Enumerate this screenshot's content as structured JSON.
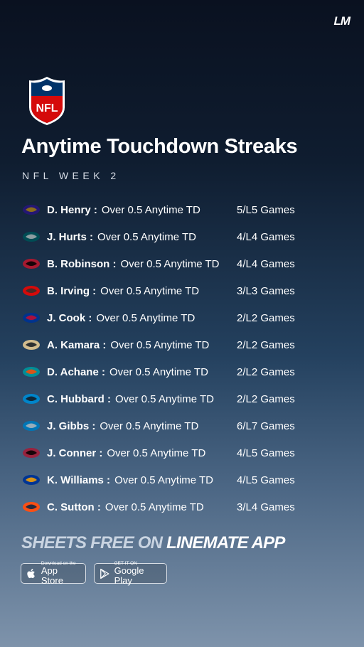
{
  "brand": "LM",
  "header": {
    "logo": "NFL",
    "title": "Anytime Touchdown Streaks",
    "subtitle": "NFL WEEK 2"
  },
  "rows": [
    {
      "player": "D. Henry :",
      "prop": "Over 0.5 Anytime TD",
      "streak": "5/L5 Games"
    },
    {
      "player": "J. Hurts :",
      "prop": "Over 0.5 Anytime TD",
      "streak": "4/L4 Games"
    },
    {
      "player": "B. Robinson :",
      "prop": "Over 0.5 Anytime TD",
      "streak": "4/L4 Games"
    },
    {
      "player": "B. Irving :",
      "prop": "Over 0.5 Anytime TD",
      "streak": "3/L3 Games"
    },
    {
      "player": "J. Cook :",
      "prop": "Over 0.5 Anytime TD",
      "streak": "2/L2 Games"
    },
    {
      "player": "A. Kamara :",
      "prop": "Over 0.5 Anytime TD",
      "streak": "2/L2 Games"
    },
    {
      "player": "D. Achane :",
      "prop": "Over 0.5 Anytime TD",
      "streak": "2/L2 Games"
    },
    {
      "player": "C. Hubbard :",
      "prop": "Over 0.5 Anytime TD",
      "streak": "2/L2 Games"
    },
    {
      "player": "J. Gibbs :",
      "prop": "Over 0.5 Anytime TD",
      "streak": "6/L7 Games"
    },
    {
      "player": "J. Conner :",
      "prop": "Over 0.5 Anytime TD",
      "streak": "4/L5 Games"
    },
    {
      "player": "K. Williams :",
      "prop": "Over 0.5 Anytime TD",
      "streak": "4/L5 Games"
    },
    {
      "player": "C. Sutton :",
      "prop": "Over 0.5 Anytime TD",
      "streak": "3/L4 Games"
    }
  ],
  "cta": {
    "lead": "SHEETS FREE ON",
    "app": "LINEMATE APP"
  },
  "stores": {
    "apple": {
      "small": "Download on the",
      "big": "App Store"
    },
    "google": {
      "small": "GET IT ON",
      "big": "Google Play"
    }
  }
}
